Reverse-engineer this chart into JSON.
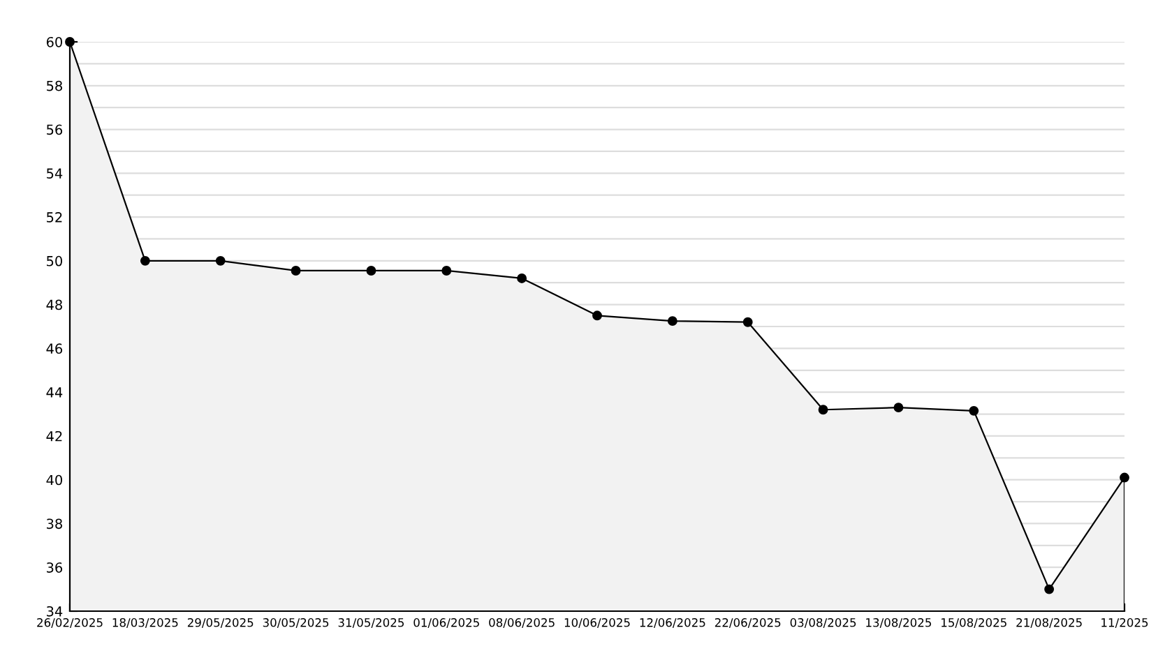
{
  "chart_data": {
    "type": "area",
    "categories": [
      "26/02/2025",
      "18/03/2025",
      "29/05/2025",
      "30/05/2025",
      "31/05/2025",
      "01/06/2025",
      "08/06/2025",
      "10/06/2025",
      "12/06/2025",
      "22/06/2025",
      "03/08/2025",
      "13/08/2025",
      "15/08/2025",
      "21/08/2025",
      "11/2025"
    ],
    "series": [
      {
        "color": "#000000",
        "values": [
          60,
          50,
          50,
          49.55,
          49.55,
          49.55,
          49.2,
          47.5,
          47.25,
          47.2,
          43.2,
          43.3,
          43.15,
          35,
          40.1
        ]
      }
    ],
    "ylim": [
      34,
      60
    ],
    "yticks": [
      34,
      {
        "value": 35,
        "label": null
      },
      36,
      {
        "value": 37,
        "label": null
      },
      38,
      {
        "value": 39,
        "label": null
      },
      40,
      {
        "value": 41,
        "label": null
      },
      42,
      {
        "value": 43,
        "label": null
      },
      44,
      {
        "value": 45,
        "label": null
      },
      46,
      {
        "value": 47,
        "label": null
      },
      48,
      {
        "value": 49,
        "label": null
      },
      50,
      {
        "value": 51,
        "label": null
      },
      52,
      {
        "value": 53,
        "label": null
      },
      54,
      {
        "value": 55,
        "label": null
      },
      56,
      {
        "value": 57,
        "label": null
      },
      58,
      {
        "value": 59,
        "label": null
      },
      60
    ],
    "grid": "y",
    "marker": "circle",
    "line_style": "solid"
  }
}
